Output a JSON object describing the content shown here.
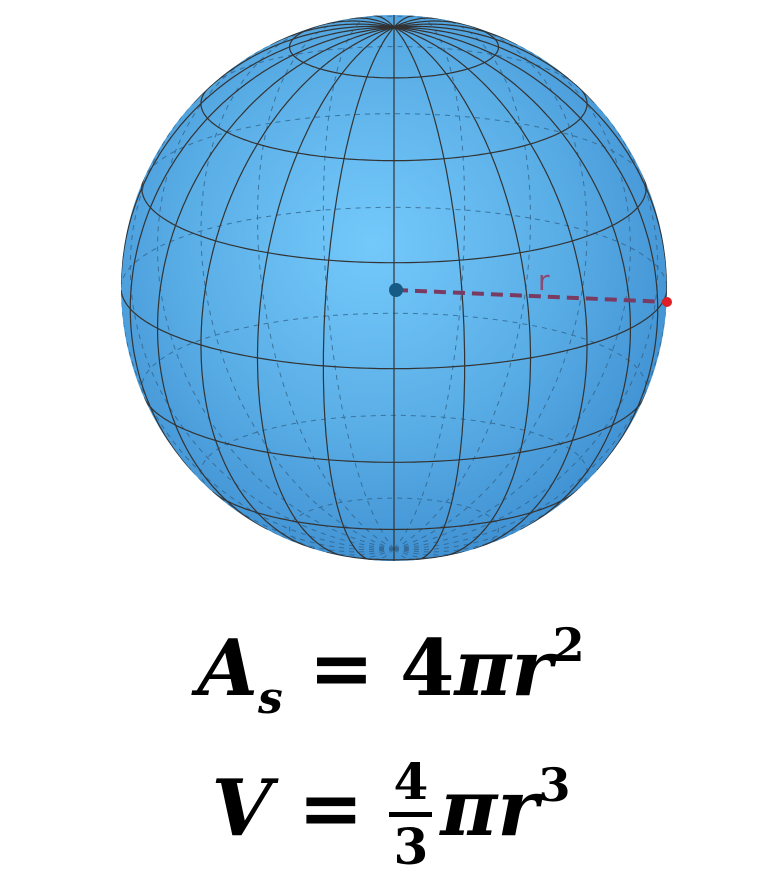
{
  "figure": {
    "radius_label": "r",
    "colors": {
      "sphere_fill": "#5aaee6",
      "sphere_highlight": "#74c9fb",
      "sphere_shadow": "#3d8ed0",
      "mesh_line": "#333333",
      "radius_line": "#7a3b63",
      "center_point": "#155b86",
      "surface_point": "#e01e26"
    }
  },
  "formulas": {
    "area": {
      "lhs": "A",
      "subscript": "s",
      "equals": "=",
      "coefficient": "4",
      "pi": "π",
      "variable": "r",
      "exponent": "2"
    },
    "volume": {
      "lhs": "V",
      "equals": "=",
      "fraction_numerator": "4",
      "fraction_denominator": "3",
      "pi": "π",
      "variable": "r",
      "exponent": "3"
    }
  }
}
